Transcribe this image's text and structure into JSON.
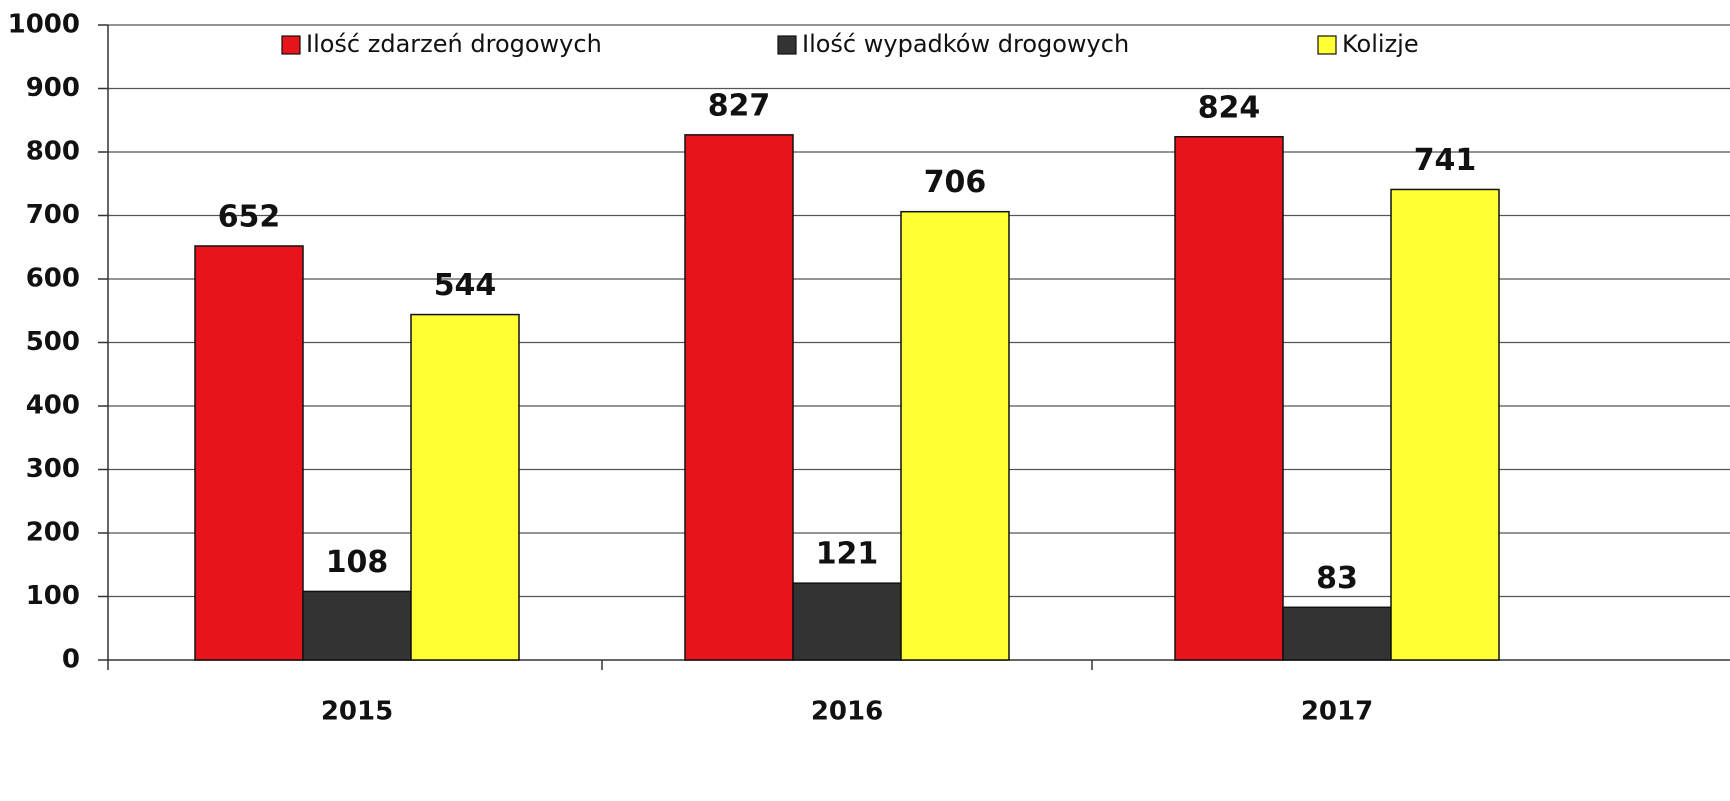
{
  "chart_data": {
    "type": "bar",
    "categories": [
      "2015",
      "2016",
      "2017"
    ],
    "series": [
      {
        "name": "Ilość zdarzeń drogowych",
        "color": "#e8141c",
        "values": [
          652,
          827,
          824
        ]
      },
      {
        "name": "Ilość wypadków drogowych",
        "color": "#333333",
        "values": [
          108,
          121,
          83
        ]
      },
      {
        "name": "Kolizje",
        "color": "#ffff33",
        "values": [
          544,
          706,
          741
        ]
      }
    ],
    "ylim": [
      0,
      1000
    ],
    "yticks": [
      0,
      100,
      200,
      300,
      400,
      500,
      600,
      700,
      800,
      900,
      1000
    ],
    "grid": true,
    "legend": "top"
  }
}
